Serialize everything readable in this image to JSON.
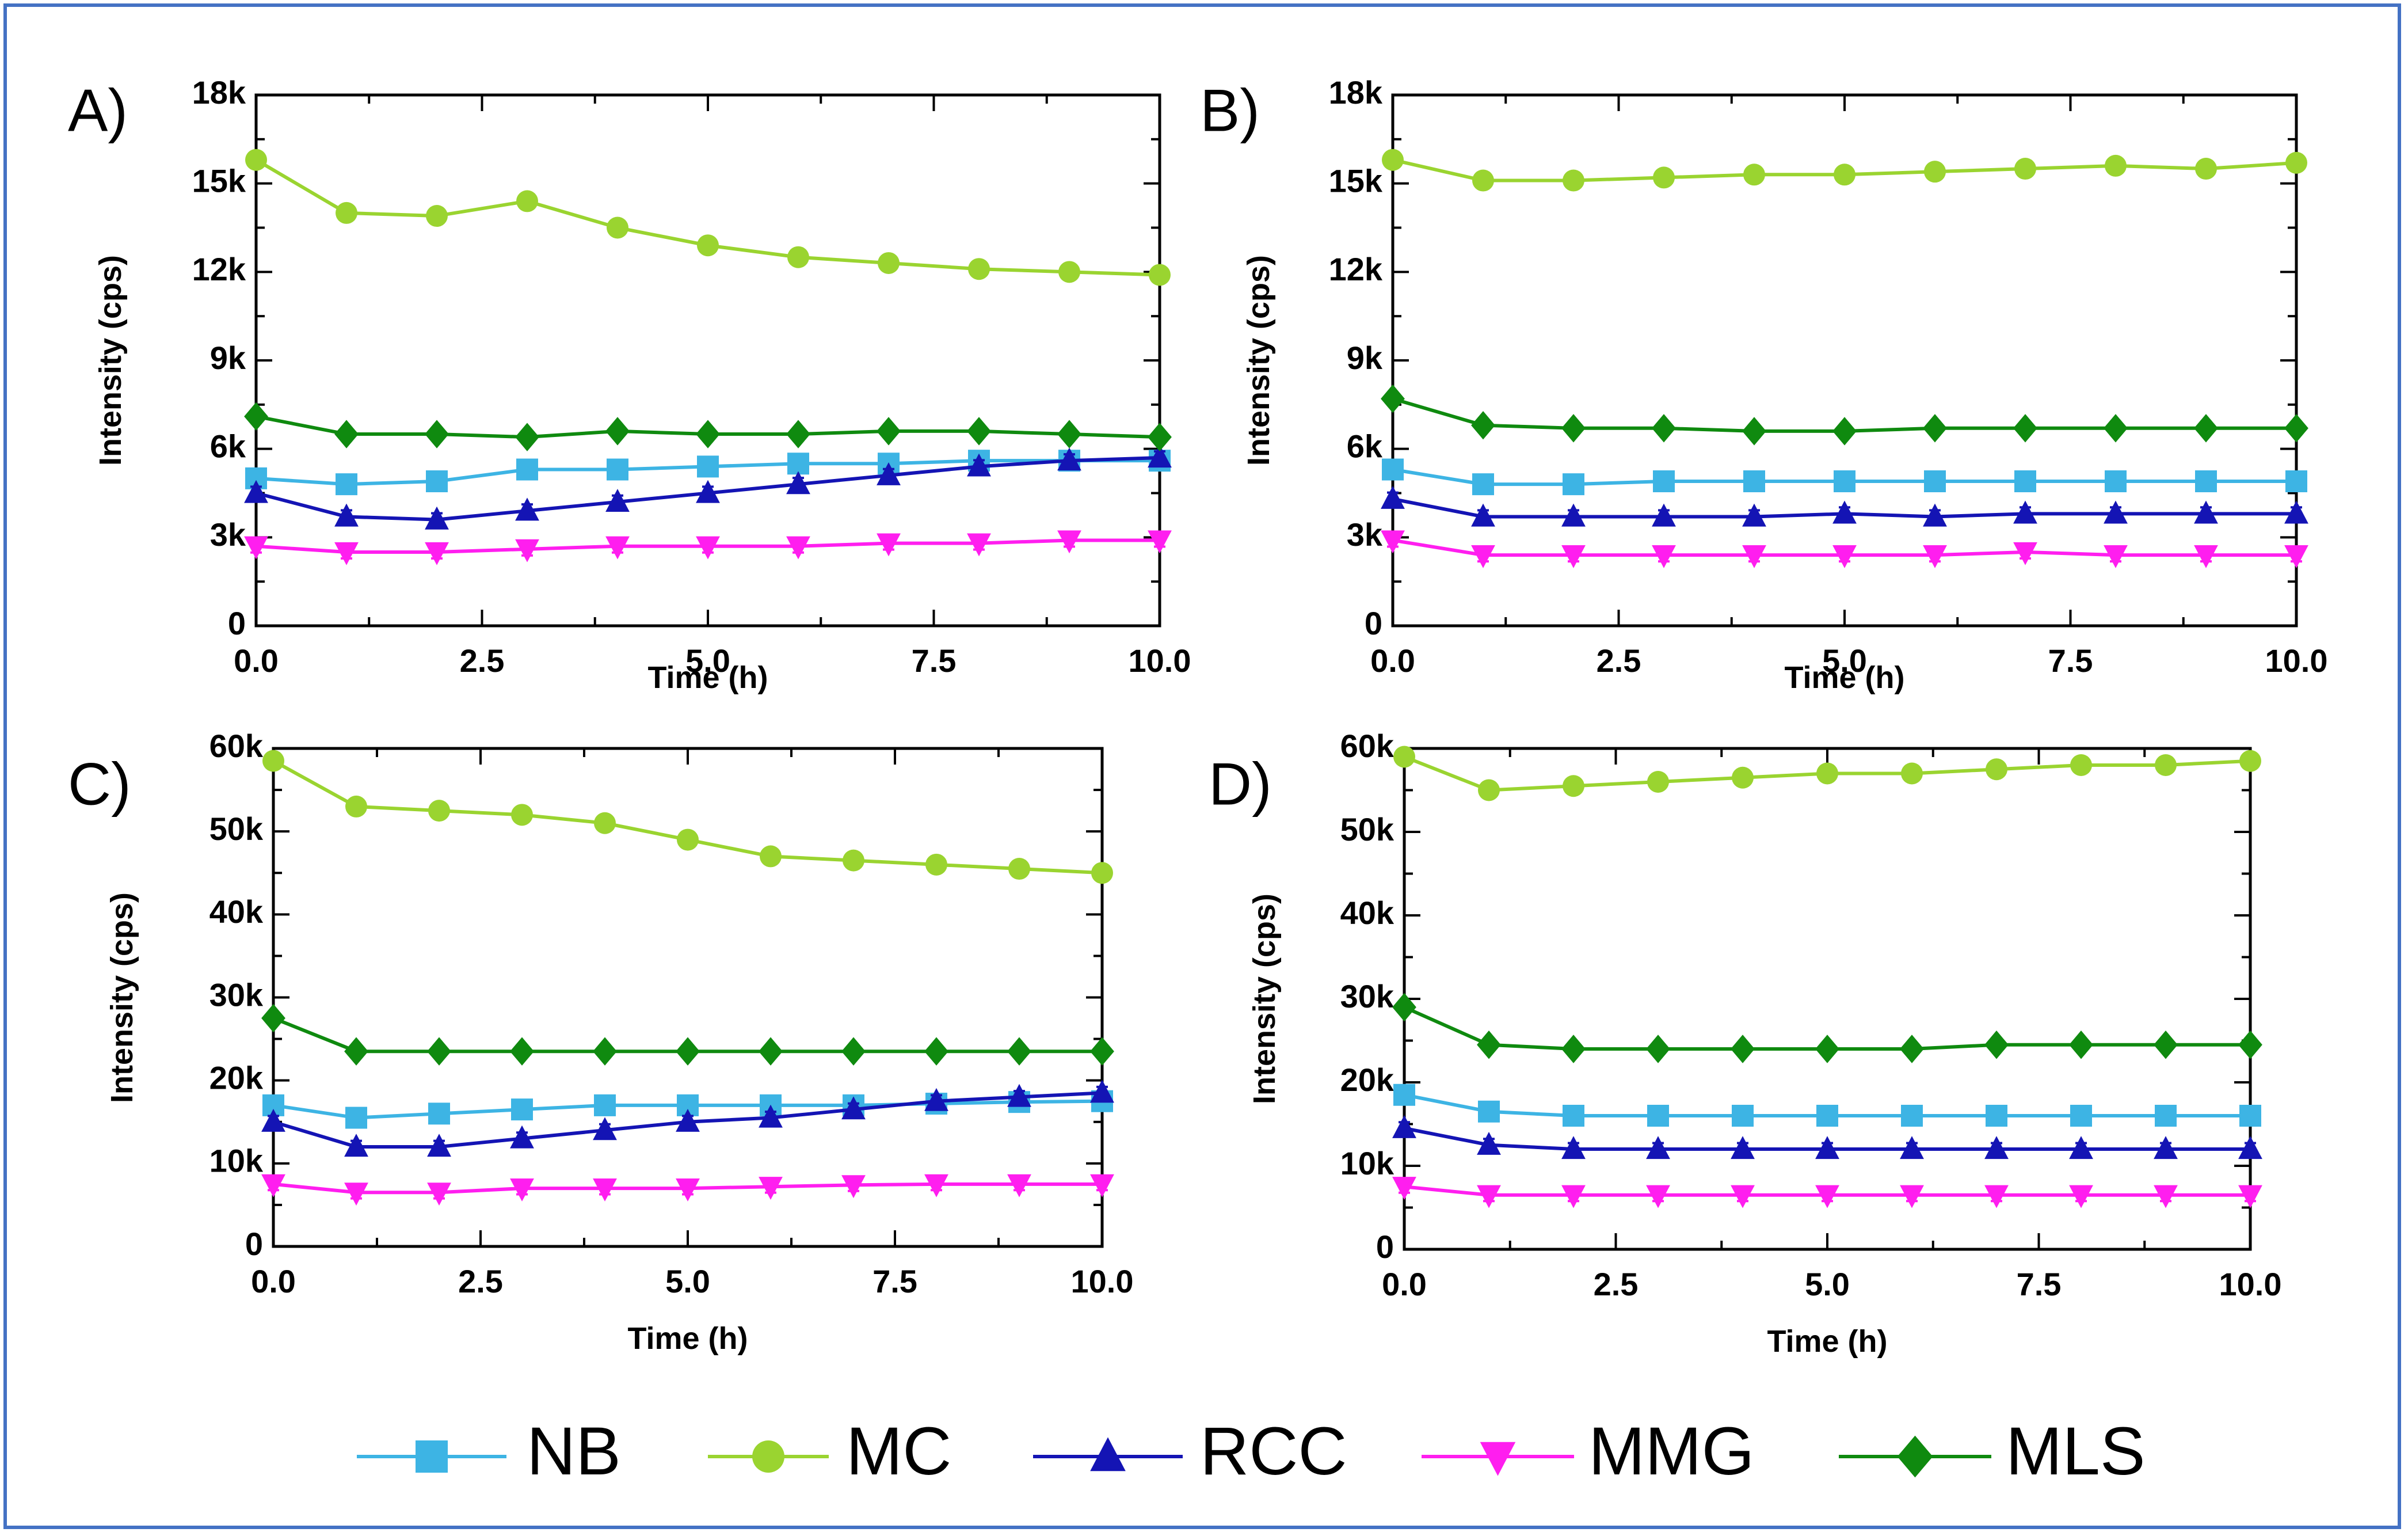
{
  "colors": {
    "NB": "#3db4e4",
    "MC": "#9ad430",
    "RCC": "#1414b4",
    "MMG": "#ff1eef",
    "MLS": "#0f8a0f",
    "frame": "#4472c4"
  },
  "legend": [
    {
      "key": "NB",
      "label": "NB",
      "marker": "square"
    },
    {
      "key": "MC",
      "label": "MC",
      "marker": "circle"
    },
    {
      "key": "RCC",
      "label": "RCC",
      "marker": "triangle-up"
    },
    {
      "key": "MMG",
      "label": "MMG",
      "marker": "triangle-down"
    },
    {
      "key": "MLS",
      "label": "MLS",
      "marker": "diamond"
    }
  ],
  "chart_data": [
    {
      "type": "line",
      "panel": "A)",
      "xlabel": "Time (h)",
      "ylabel": "Intensity (cps)",
      "xlim": [
        0,
        10
      ],
      "ylim": [
        0,
        18000
      ],
      "xticks": [
        "0.0",
        "2.5",
        "5.0",
        "7.5",
        "10.0"
      ],
      "yticks": [
        "0",
        "3k",
        "6k",
        "9k",
        "12k",
        "15k",
        "18k"
      ],
      "x": [
        0,
        1,
        2,
        3,
        4,
        5,
        6,
        7,
        8,
        9,
        10
      ],
      "series": [
        {
          "name": "NB",
          "values": [
            5000,
            4800,
            4900,
            5300,
            5300,
            5400,
            5500,
            5500,
            5600,
            5600,
            5600
          ]
        },
        {
          "name": "MC",
          "values": [
            15800,
            14000,
            13900,
            14400,
            13500,
            12900,
            12500,
            12300,
            12100,
            12000,
            11900
          ]
        },
        {
          "name": "RCC",
          "values": [
            4500,
            3700,
            3600,
            3900,
            4200,
            4500,
            4800,
            5100,
            5400,
            5600,
            5700
          ]
        },
        {
          "name": "MMG",
          "values": [
            2700,
            2500,
            2500,
            2600,
            2700,
            2700,
            2700,
            2800,
            2800,
            2900,
            2900
          ]
        },
        {
          "name": "MLS",
          "values": [
            7100,
            6500,
            6500,
            6400,
            6600,
            6500,
            6500,
            6600,
            6600,
            6500,
            6400
          ]
        }
      ]
    },
    {
      "type": "line",
      "panel": "B)",
      "xlabel": "Time (h)",
      "ylabel": "Intensity (cps)",
      "xlim": [
        0,
        10
      ],
      "ylim": [
        0,
        18000
      ],
      "xticks": [
        "0.0",
        "2.5",
        "5.0",
        "7.5",
        "10.0"
      ],
      "yticks": [
        "0",
        "3k",
        "6k",
        "9k",
        "12k",
        "15k",
        "18k"
      ],
      "x": [
        0,
        1,
        2,
        3,
        4,
        5,
        6,
        7,
        8,
        9,
        10
      ],
      "series": [
        {
          "name": "NB",
          "values": [
            5300,
            4800,
            4800,
            4900,
            4900,
            4900,
            4900,
            4900,
            4900,
            4900,
            4900
          ]
        },
        {
          "name": "MC",
          "values": [
            15800,
            15100,
            15100,
            15200,
            15300,
            15300,
            15400,
            15500,
            15600,
            15500,
            15700
          ]
        },
        {
          "name": "RCC",
          "values": [
            4300,
            3700,
            3700,
            3700,
            3700,
            3800,
            3700,
            3800,
            3800,
            3800,
            3800
          ]
        },
        {
          "name": "MMG",
          "values": [
            2900,
            2400,
            2400,
            2400,
            2400,
            2400,
            2400,
            2500,
            2400,
            2400,
            2400
          ]
        },
        {
          "name": "MLS",
          "values": [
            7700,
            6800,
            6700,
            6700,
            6600,
            6600,
            6700,
            6700,
            6700,
            6700,
            6700
          ]
        }
      ]
    },
    {
      "type": "line",
      "panel": "C)",
      "xlabel": "Time (h)",
      "ylabel": "Intensity (cps)",
      "xlim": [
        0,
        10
      ],
      "ylim": [
        0,
        60000
      ],
      "xticks": [
        "0.0",
        "2.5",
        "5.0",
        "7.5",
        "10.0"
      ],
      "yticks": [
        "0",
        "10k",
        "20k",
        "30k",
        "40k",
        "50k",
        "60k"
      ],
      "x": [
        0,
        1,
        2,
        3,
        4,
        5,
        6,
        7,
        8,
        9,
        10
      ],
      "series": [
        {
          "name": "NB",
          "values": [
            17000,
            15500,
            16000,
            16500,
            17000,
            17000,
            17000,
            17000,
            17200,
            17400,
            17500
          ]
        },
        {
          "name": "MC",
          "values": [
            58500,
            53000,
            52500,
            52000,
            51000,
            49000,
            47000,
            46500,
            46000,
            45500,
            45000
          ]
        },
        {
          "name": "RCC",
          "values": [
            15000,
            12000,
            12000,
            13000,
            14000,
            15000,
            15500,
            16500,
            17500,
            18000,
            18500
          ]
        },
        {
          "name": "MMG",
          "values": [
            7500,
            6500,
            6500,
            7000,
            7000,
            7000,
            7200,
            7400,
            7500,
            7500,
            7500
          ]
        },
        {
          "name": "MLS",
          "values": [
            27500,
            23500,
            23500,
            23500,
            23500,
            23500,
            23500,
            23500,
            23500,
            23500,
            23500
          ]
        }
      ]
    },
    {
      "type": "line",
      "panel": "D)",
      "xlabel": "Time (h)",
      "ylabel": "Intensity (cps)",
      "xlim": [
        0,
        10
      ],
      "ylim": [
        0,
        60000
      ],
      "xticks": [
        "0.0",
        "2.5",
        "5.0",
        "7.5",
        "10.0"
      ],
      "yticks": [
        "0",
        "10k",
        "20k",
        "30k",
        "40k",
        "50k",
        "60k"
      ],
      "x": [
        0,
        1,
        2,
        3,
        4,
        5,
        6,
        7,
        8,
        9,
        10
      ],
      "series": [
        {
          "name": "NB",
          "values": [
            18500,
            16500,
            16000,
            16000,
            16000,
            16000,
            16000,
            16000,
            16000,
            16000,
            16000
          ]
        },
        {
          "name": "MC",
          "values": [
            59000,
            55000,
            55500,
            56000,
            56500,
            57000,
            57000,
            57500,
            58000,
            58000,
            58500
          ]
        },
        {
          "name": "RCC",
          "values": [
            14500,
            12500,
            12000,
            12000,
            12000,
            12000,
            12000,
            12000,
            12000,
            12000,
            12000
          ]
        },
        {
          "name": "MMG",
          "values": [
            7500,
            6500,
            6500,
            6500,
            6500,
            6500,
            6500,
            6500,
            6500,
            6500,
            6500
          ]
        },
        {
          "name": "MLS",
          "values": [
            29000,
            24500,
            24000,
            24000,
            24000,
            24000,
            24000,
            24500,
            24500,
            24500,
            24500
          ]
        }
      ]
    }
  ]
}
